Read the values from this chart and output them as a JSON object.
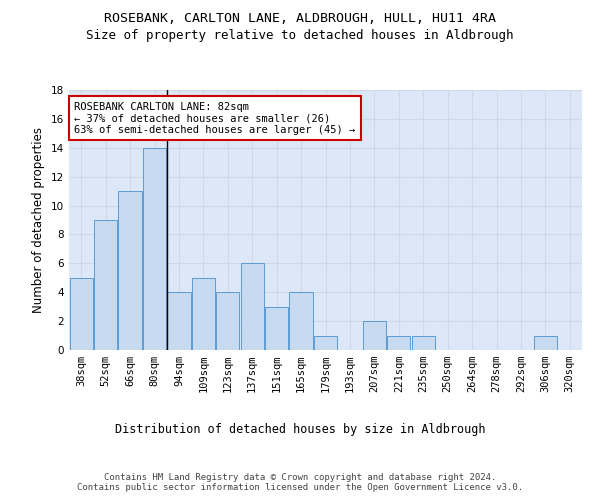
{
  "title": "ROSEBANK, CARLTON LANE, ALDBROUGH, HULL, HU11 4RA",
  "subtitle": "Size of property relative to detached houses in Aldbrough",
  "xlabel": "Distribution of detached houses by size in Aldbrough",
  "ylabel": "Number of detached properties",
  "categories": [
    "38sqm",
    "52sqm",
    "66sqm",
    "80sqm",
    "94sqm",
    "109sqm",
    "123sqm",
    "137sqm",
    "151sqm",
    "165sqm",
    "179sqm",
    "193sqm",
    "207sqm",
    "221sqm",
    "235sqm",
    "250sqm",
    "264sqm",
    "278sqm",
    "292sqm",
    "306sqm",
    "320sqm"
  ],
  "values": [
    5,
    9,
    11,
    14,
    4,
    5,
    4,
    6,
    3,
    4,
    1,
    0,
    2,
    1,
    1,
    0,
    0,
    0,
    0,
    1,
    0
  ],
  "bar_color": "#c8daf0",
  "bar_edge_color": "#5b9bd5",
  "highlight_bar_index": 3,
  "highlight_line_color": "#000000",
  "annotation_text": "ROSEBANK CARLTON LANE: 82sqm\n← 37% of detached houses are smaller (26)\n63% of semi-detached houses are larger (45) →",
  "annotation_box_color": "#ffffff",
  "annotation_box_edge": "#cc0000",
  "ylim": [
    0,
    18
  ],
  "yticks": [
    0,
    2,
    4,
    6,
    8,
    10,
    12,
    14,
    16,
    18
  ],
  "grid_color": "#d0d8e8",
  "background_color": "#dce8f8",
  "footer_text": "Contains HM Land Registry data © Crown copyright and database right 2024.\nContains public sector information licensed under the Open Government Licence v3.0.",
  "title_fontsize": 9.5,
  "subtitle_fontsize": 9,
  "ylabel_fontsize": 8.5,
  "xlabel_fontsize": 8.5,
  "tick_fontsize": 7.5,
  "annotation_fontsize": 7.5,
  "footer_fontsize": 6.5
}
